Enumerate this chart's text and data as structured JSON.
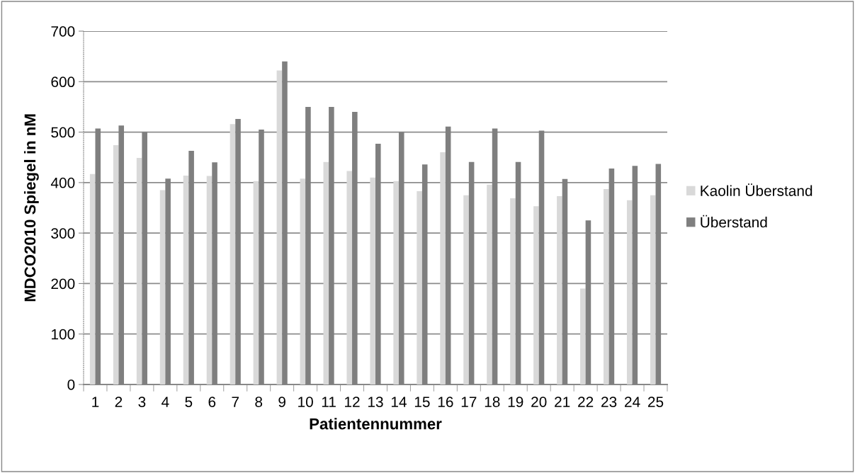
{
  "chart_data": {
    "type": "bar",
    "xlabel": "Patientennummer",
    "ylabel": "MDCO2010 Spiegel in nM",
    "categories": [
      "1",
      "2",
      "3",
      "4",
      "5",
      "6",
      "7",
      "8",
      "9",
      "10",
      "11",
      "12",
      "13",
      "14",
      "15",
      "16",
      "17",
      "18",
      "19",
      "20",
      "21",
      "22",
      "23",
      "24",
      "25"
    ],
    "series": [
      {
        "name": "Kaolin Überstand",
        "color": "#d9d9d9",
        "values": [
          417,
          474,
          449,
          385,
          414,
          413,
          516,
          403,
          622,
          408,
          441,
          423,
          410,
          403,
          383,
          460,
          375,
          396,
          369,
          353,
          373,
          190,
          387,
          365,
          375
        ]
      },
      {
        "name": "Überstand",
        "color": "#7f7f7f",
        "values": [
          507,
          513,
          500,
          408,
          463,
          440,
          526,
          505,
          640,
          550,
          550,
          540,
          477,
          500,
          436,
          511,
          441,
          507,
          441,
          503,
          407,
          325,
          428,
          433,
          437
        ]
      }
    ],
    "ylim": [
      0,
      700
    ],
    "yticks": [
      0,
      100,
      200,
      300,
      400,
      500,
      600,
      700
    ],
    "grid": "y",
    "legend": "right"
  }
}
